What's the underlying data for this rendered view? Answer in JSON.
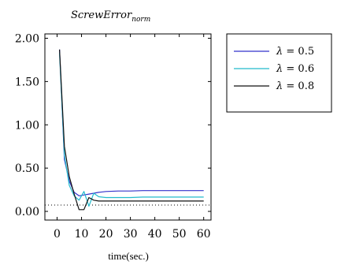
{
  "chart_data": {
    "type": "line",
    "title": "ScrewError",
    "title_subscript": "norm",
    "xlabel": "time(sec.)",
    "ylabel": "",
    "xlim": [
      -5,
      63
    ],
    "ylim": [
      -0.1,
      2.05
    ],
    "x_ticks": [
      "0",
      "10",
      "20",
      "30",
      "40",
      "50",
      "60"
    ],
    "y_ticks": [
      "0.00",
      "0.50",
      "1.00",
      "1.50",
      "2.00"
    ],
    "reference_line": {
      "y": 0,
      "style": "dotted"
    },
    "grid": false,
    "legend_position": "outside-right",
    "legend_symbol": "λ",
    "legend_values": [
      "0.5",
      "0.6",
      "0.8"
    ],
    "series": [
      {
        "name": "λ = 0.5",
        "color": "#3333cc",
        "x": [
          1,
          3,
          5,
          7,
          9,
          11,
          13,
          15,
          17,
          20,
          25,
          30,
          35,
          40,
          45,
          50,
          55,
          60
        ],
        "y": [
          1.87,
          0.6,
          0.35,
          0.22,
          0.18,
          0.19,
          0.2,
          0.21,
          0.22,
          0.23,
          0.235,
          0.235,
          0.24,
          0.24,
          0.24,
          0.24,
          0.24,
          0.24
        ]
      },
      {
        "name": "λ = 0.6",
        "color": "#22bbcc",
        "x": [
          1,
          3,
          5,
          7,
          9,
          11,
          13,
          15,
          17,
          20,
          25,
          30,
          35,
          40,
          45,
          50,
          55,
          60
        ],
        "y": [
          1.83,
          0.65,
          0.3,
          0.18,
          0.13,
          0.23,
          0.06,
          0.21,
          0.17,
          0.16,
          0.16,
          0.16,
          0.165,
          0.165,
          0.165,
          0.165,
          0.165,
          0.165
        ]
      },
      {
        "name": "λ = 0.8",
        "color": "#111111",
        "x": [
          1,
          3,
          5,
          7,
          9,
          11,
          13,
          15,
          17,
          20,
          25,
          30,
          35,
          40,
          45,
          50,
          55,
          60
        ],
        "y": [
          1.87,
          0.75,
          0.4,
          0.2,
          0.02,
          0.02,
          0.16,
          0.13,
          0.12,
          0.12,
          0.12,
          0.12,
          0.12,
          0.12,
          0.12,
          0.12,
          0.12,
          0.12
        ]
      }
    ]
  }
}
